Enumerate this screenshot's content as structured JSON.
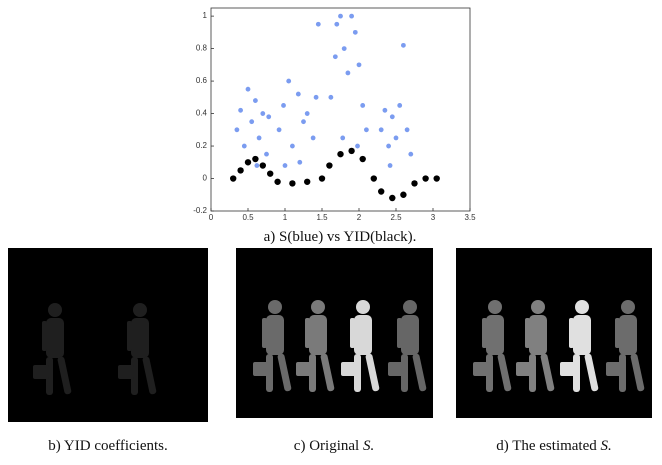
{
  "chart_data": {
    "type": "scatter",
    "xlim": [
      0,
      3.5
    ],
    "xticks": [
      0,
      0.5,
      1,
      1.5,
      2,
      2.5,
      3,
      3.5
    ],
    "ylim": [
      -0.2,
      1.05
    ],
    "yticks": [
      -0.2,
      0,
      0.2,
      0.4,
      0.6,
      0.8,
      1
    ],
    "caption": "a) S(blue) vs YID(black).",
    "series": [
      {
        "color": "#7b9cf0",
        "x": [
          0.35,
          0.4,
          0.45,
          0.5,
          0.55,
          0.6,
          0.65,
          0.7,
          0.75,
          0.78,
          0.5,
          0.62,
          0.92,
          0.98,
          1.05,
          1.1,
          1.18,
          1.25,
          1.3,
          1.38,
          1.45,
          1.42,
          1.0,
          1.2,
          1.62,
          1.7,
          1.75,
          1.8,
          1.85,
          1.9,
          1.95,
          2.0,
          2.05,
          2.1,
          1.78,
          1.98,
          1.68,
          2.3,
          2.35,
          2.4,
          2.45,
          2.5,
          2.55,
          2.6,
          2.65,
          2.7,
          2.42
        ],
        "values": [
          0.3,
          0.42,
          0.2,
          0.55,
          0.35,
          0.48,
          0.25,
          0.4,
          0.15,
          0.38,
          0.1,
          0.08,
          0.3,
          0.45,
          0.6,
          0.2,
          0.52,
          0.35,
          0.4,
          0.25,
          0.95,
          0.5,
          0.08,
          0.1,
          0.5,
          0.95,
          1.0,
          0.8,
          0.65,
          1.0,
          0.9,
          0.7,
          0.45,
          0.3,
          0.25,
          0.2,
          0.75,
          0.3,
          0.42,
          0.2,
          0.38,
          0.25,
          0.45,
          0.82,
          0.3,
          0.15,
          0.08
        ]
      },
      {
        "color": "#000000",
        "x": [
          0.3,
          0.4,
          0.5,
          0.6,
          0.7,
          0.8,
          0.9,
          1.1,
          1.3,
          1.5,
          1.6,
          1.75,
          1.9,
          2.05,
          2.2,
          2.3,
          2.45,
          2.6,
          2.75,
          2.9,
          3.05
        ],
        "values": [
          0,
          0.05,
          0.1,
          0.12,
          0.08,
          0.03,
          -0.02,
          -0.03,
          -0.02,
          0,
          0.08,
          0.15,
          0.17,
          0.12,
          0,
          -0.08,
          -0.12,
          -0.1,
          -0.03,
          0,
          0
        ]
      }
    ]
  },
  "panels": [
    {
      "caption": "b) YID coefficients."
    },
    {
      "caption": "c) Original",
      "caption_emphasis": "S."
    },
    {
      "caption": "d) The estimated",
      "caption_emphasis": "S."
    }
  ]
}
